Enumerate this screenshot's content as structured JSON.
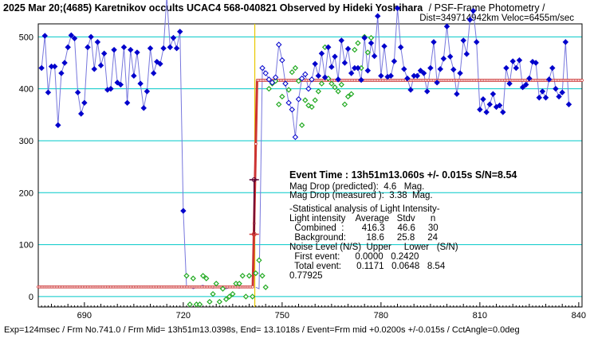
{
  "chart_data": {
    "type": "scatter",
    "title_bold": "2025 Mar 20;(4685) Karetnikov occults UCAC4 568-040821 Observed by Hideki Yoshihara",
    "title_rest": "/ PSF-Frame Photometry /",
    "title_line2": "Dist=349714942km Veloc=6455m/sec",
    "footer": "Exp=124msec / Frm No.741.0 / Frm Mid= 13h51m13.0398s,  End= 13.1018s / Event=Frm mid +0.0200s +/-0.015s / CctAngle=0.0deg",
    "xlim": [
      676,
      841
    ],
    "ylim": [
      -20,
      525
    ],
    "xticks": [
      690,
      720,
      750,
      780,
      810,
      840
    ],
    "yticks": [
      0,
      100,
      200,
      300,
      400,
      500
    ],
    "grid": "horizontal",
    "colors": {
      "target": "#0000cc",
      "target_line": "#7777dd",
      "comparison": "#22aa22",
      "model": "#cc3333",
      "event_line": "#e8c800",
      "gridline": "#00c8c8"
    },
    "event_frame": 741.7,
    "model": {
      "upper": 416.3,
      "lower": 18.6,
      "d_start": 741.1,
      "d_end": 742.4
    },
    "target": {
      "x_start": 677,
      "values": [
        440,
        502,
        393,
        443,
        443,
        330,
        430,
        450,
        480,
        503,
        497,
        393,
        352,
        373,
        480,
        500,
        438,
        490,
        445,
        468,
        398,
        400,
        475,
        412,
        408,
        480,
        373,
        475,
        425,
        470,
        410,
        363,
        395,
        478,
        430,
        452,
        448,
        478,
        578,
        480,
        498,
        478,
        510,
        165,
        17,
        20,
        15,
        18,
        20,
        22,
        17,
        19,
        16,
        18,
        20,
        18,
        15,
        17,
        20,
        18,
        16,
        19,
        17,
        18,
        20,
        18,
        15,
        440,
        430,
        418,
        412,
        422,
        485,
        455,
        410,
        373,
        360,
        307,
        380,
        420,
        428,
        400,
        418,
        448,
        425,
        468,
        422,
        480,
        442,
        462,
        418,
        493,
        450,
        477,
        430,
        440,
        440,
        417,
        498,
        435,
        488,
        463,
        540,
        425,
        482,
        423,
        425,
        453,
        555,
        480,
        438,
        420,
        398,
        425,
        425,
        435,
        430,
        395,
        440,
        490,
        412,
        438,
        458,
        520,
        462,
        437,
        390,
        430,
        493,
        467,
        533,
        550,
        490,
        360,
        380,
        355,
        370,
        390,
        365,
        368,
        355,
        440,
        410,
        453,
        440,
        455,
        403,
        408,
        420,
        452,
        450,
        383,
        395,
        383,
        418,
        440,
        400,
        385,
        393,
        490,
        370
      ]
    },
    "target_line_cut": 741.5,
    "comparison": {
      "x_start": 721,
      "values": [
        40,
        -15,
        35,
        -15,
        -15,
        40,
        35,
        -10,
        5,
        25,
        -10,
        15,
        -5,
        0,
        5,
        25,
        25,
        40,
        0,
        40,
        0,
        45,
        70,
        40,
        18,
        400,
        410,
        415,
        370,
        385,
        410,
        398,
        432,
        440,
        415,
        330,
        378,
        368,
        365,
        378,
        395,
        410,
        480,
        420,
        410,
        403,
        395,
        408,
        370,
        385,
        390,
        475,
        488,
        440,
        500,
        470,
        498
      ]
    },
    "event_markers": [
      {
        "frame": 741.5,
        "value": 120
      },
      {
        "frame": 741.5,
        "value": 225
      }
    ]
  },
  "annotation": {
    "event_time": "Event Time : 13h51m13.060s  +/- 0.015s  S/N=8.54",
    "lines": [
      "Mag Drop (predicted):  4.6   Mag.",
      "Mag Drop (measured ):  3.38  Mag.",
      "",
      "-Statistical analysis of Light Intensity-",
      "Light intensity    Average   Stdv      n",
      "  Combined  :       416.3     46.6     30",
      "  Background:        18.6     25.8     24",
      "Noise Level (N/S)  Upper     Lower   (S/N)",
      "  First event:      0.0000   0.2420",
      "  Total event:      0.1171   0.0648   8.54",
      "0.77925"
    ]
  }
}
